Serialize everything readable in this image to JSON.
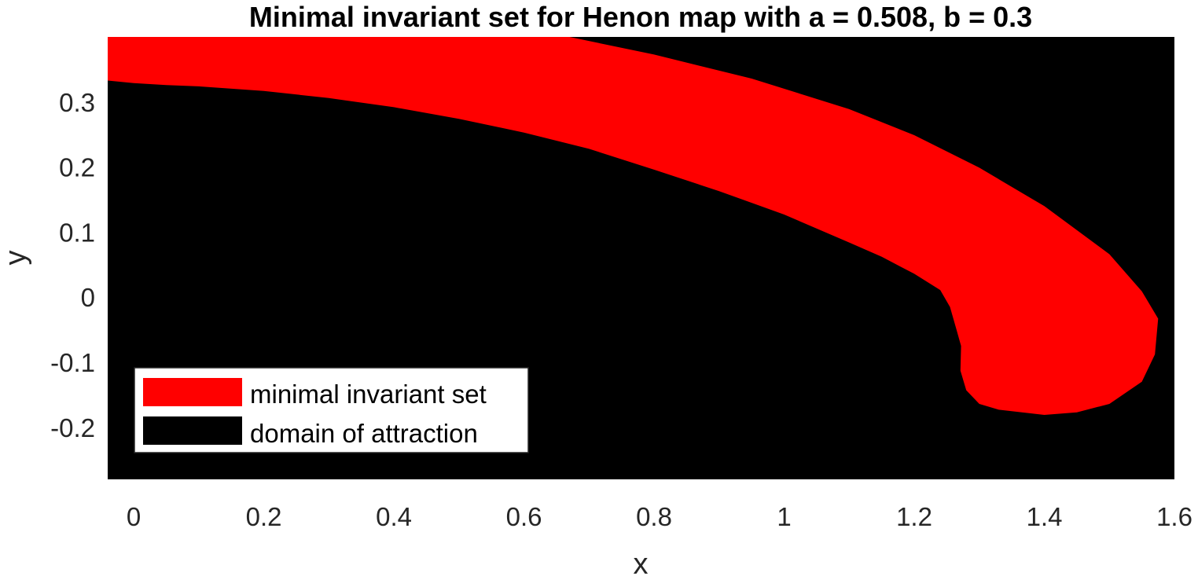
{
  "chart_data": {
    "type": "area",
    "title": "Minimal invariant set for Henon map with a = 0.508, b = 0.3",
    "xlabel": "x",
    "ylabel": "y",
    "xlim": [
      -0.04,
      1.6
    ],
    "ylim": [
      -0.28,
      0.4
    ],
    "xticks": [
      0,
      0.2,
      0.4,
      0.6,
      0.8,
      1,
      1.2,
      1.4,
      1.6
    ],
    "xtick_labels": [
      "0",
      "0.2",
      "0.4",
      "0.6",
      "0.8",
      "1",
      "1.2",
      "1.4",
      "1.6"
    ],
    "yticks": [
      0.3,
      0.2,
      0.1,
      0,
      -0.1,
      -0.2
    ],
    "ytick_labels": [
      "0.3",
      "0.2",
      "0.1",
      "0",
      "-0.1",
      "-0.2"
    ],
    "grid": false,
    "legend_position": "bottom-left",
    "colors": {
      "invariant_set": "#ff0000",
      "domain": "#000000"
    },
    "series": [
      {
        "name": "minimal invariant set",
        "color": "#ff0000",
        "role": "region",
        "boundary": [
          [
            -0.04,
            0.4
          ],
          [
            0.67,
            0.4
          ],
          [
            0.8,
            0.373
          ],
          [
            0.95,
            0.336
          ],
          [
            1.1,
            0.289
          ],
          [
            1.2,
            0.249
          ],
          [
            1.3,
            0.199
          ],
          [
            1.4,
            0.14
          ],
          [
            1.5,
            0.066
          ],
          [
            1.55,
            0.009
          ],
          [
            1.575,
            -0.033
          ],
          [
            1.57,
            -0.088
          ],
          [
            1.55,
            -0.13
          ],
          [
            1.5,
            -0.164
          ],
          [
            1.45,
            -0.177
          ],
          [
            1.4,
            -0.181
          ],
          [
            1.33,
            -0.173
          ],
          [
            1.3,
            -0.164
          ],
          [
            1.28,
            -0.143
          ],
          [
            1.271,
            -0.113
          ],
          [
            1.272,
            -0.075
          ],
          [
            1.265,
            -0.05
          ],
          [
            1.255,
            -0.015
          ],
          [
            1.24,
            0.011
          ],
          [
            1.2,
            0.036
          ],
          [
            1.15,
            0.062
          ],
          [
            1.1,
            0.084
          ],
          [
            1.0,
            0.127
          ],
          [
            0.9,
            0.163
          ],
          [
            0.8,
            0.196
          ],
          [
            0.7,
            0.228
          ],
          [
            0.6,
            0.253
          ],
          [
            0.5,
            0.274
          ],
          [
            0.4,
            0.292
          ],
          [
            0.3,
            0.306
          ],
          [
            0.2,
            0.317
          ],
          [
            0.1,
            0.324
          ],
          [
            0.05,
            0.326
          ],
          [
            0.0,
            0.329
          ],
          [
            -0.04,
            0.333
          ]
        ]
      },
      {
        "name": "domain of attraction",
        "color": "#000000",
        "role": "background"
      }
    ]
  }
}
